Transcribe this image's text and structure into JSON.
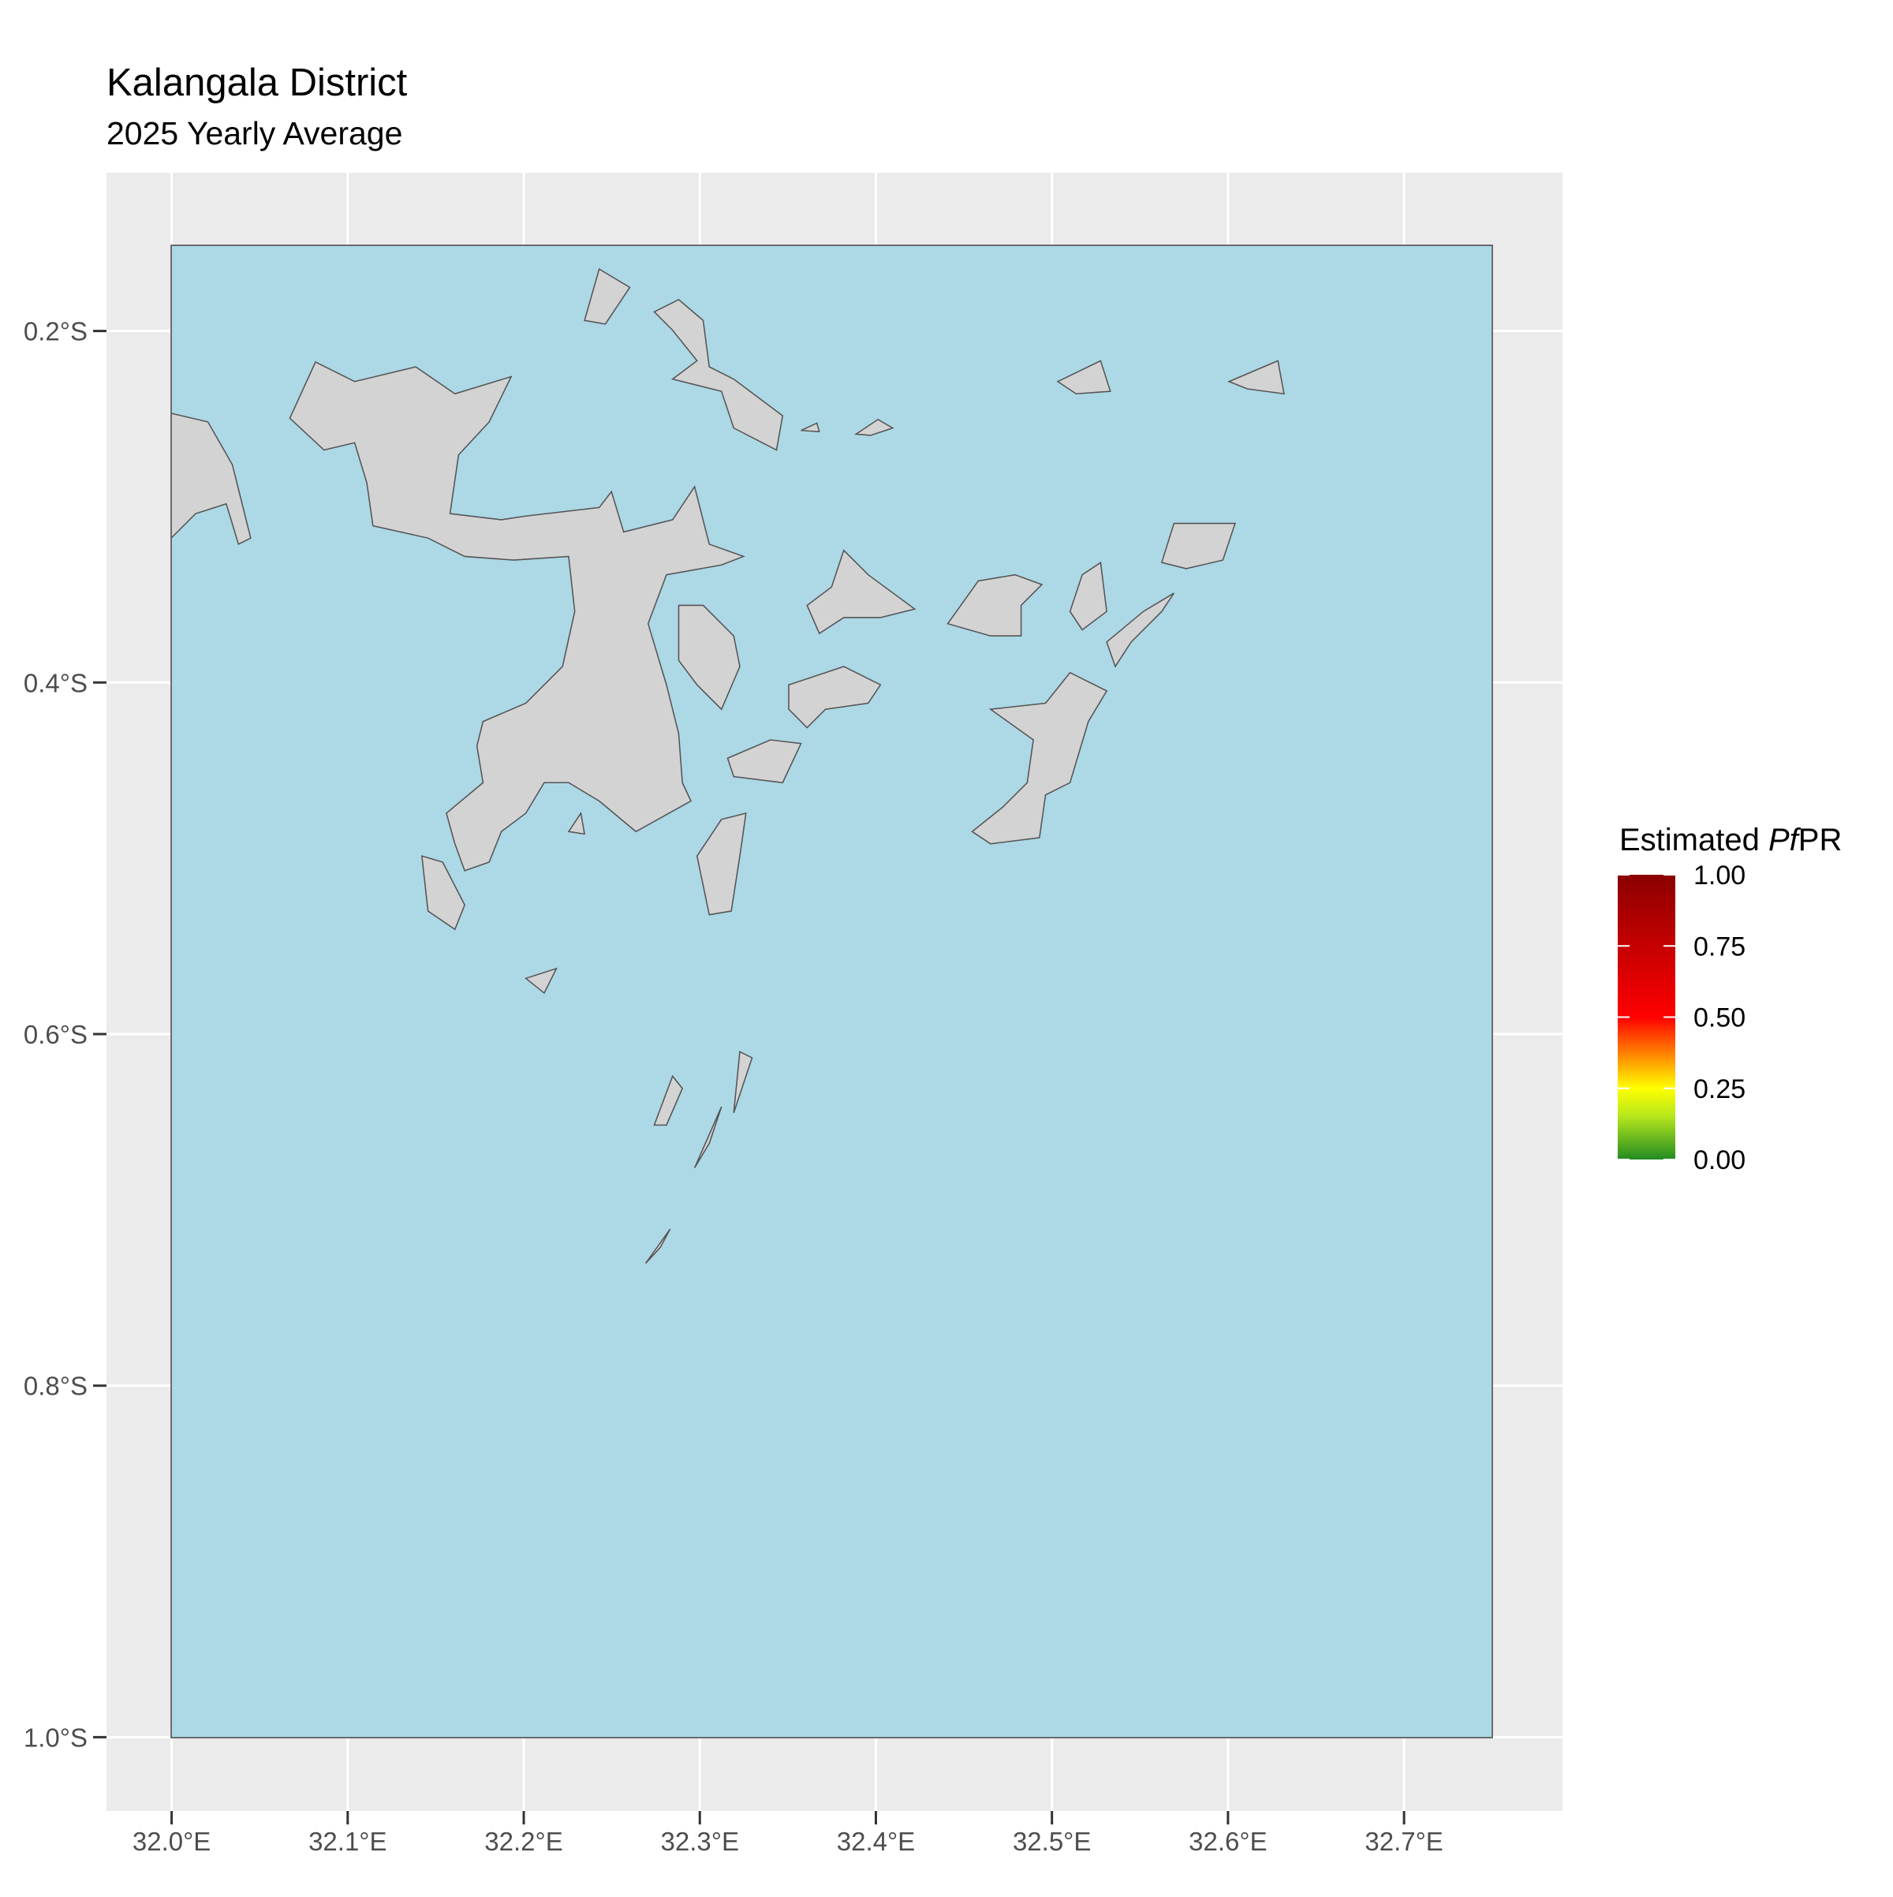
{
  "map": {
    "title": "Kalangala District",
    "subtitle": "2025 Yearly Average",
    "xlim": [
      31.963,
      32.79
    ],
    "ylim": [
      -1.042,
      -0.11
    ],
    "xticks": [
      {
        "value": 32.0,
        "label": "32.0°E"
      },
      {
        "value": 32.1,
        "label": "32.1°E"
      },
      {
        "value": 32.2,
        "label": "32.2°E"
      },
      {
        "value": 32.3,
        "label": "32.3°E"
      },
      {
        "value": 32.4,
        "label": "32.4°E"
      },
      {
        "value": 32.5,
        "label": "32.5°E"
      },
      {
        "value": 32.6,
        "label": "32.6°E"
      },
      {
        "value": 32.7,
        "label": "32.7°E"
      }
    ],
    "yticks": [
      {
        "value": -0.2,
        "label": "0.2°S"
      },
      {
        "value": -0.4,
        "label": "0.4°S"
      },
      {
        "value": -0.6,
        "label": "0.6°S"
      },
      {
        "value": -0.8,
        "label": "0.8°S"
      },
      {
        "value": -1.0,
        "label": "1.0°S"
      }
    ],
    "grid": true,
    "legend": {
      "title": [
        "Estimated ",
        "Pf",
        "PR"
      ],
      "limits": [
        0,
        1
      ],
      "ticks": [
        {
          "value": 0,
          "label": "0.00"
        },
        {
          "value": 0.25,
          "label": "0.25"
        },
        {
          "value": 0.5,
          "label": "0.50"
        },
        {
          "value": 0.75,
          "label": "0.75"
        },
        {
          "value": 1,
          "label": "1.00"
        }
      ],
      "colors": [
        {
          "value": 0,
          "color": "#228b22"
        },
        {
          "value": 0.15,
          "color": "#b5e61d"
        },
        {
          "value": 0.25,
          "color": "#ffff00"
        },
        {
          "value": 0.5,
          "color": "#ff0000"
        },
        {
          "value": 1,
          "color": "#8b0000"
        }
      ]
    }
  }
}
